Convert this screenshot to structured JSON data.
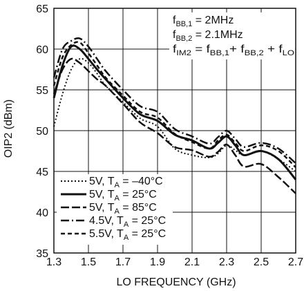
{
  "chart_data": {
    "type": "line",
    "xlabel": "LO FREQUENCY (GHz)",
    "ylabel": "OIP2 (dBm)",
    "xlim": [
      1.3,
      2.7
    ],
    "ylim": [
      35,
      65
    ],
    "xticks": [
      "1.3",
      "1.5",
      "1.7",
      "1.9",
      "2.1",
      "2.3",
      "2.5",
      "2.7"
    ],
    "yticks": [
      "35",
      "40",
      "45",
      "50",
      "55",
      "60",
      "65"
    ],
    "grid": true,
    "legend_position": "bottom-left",
    "annotations": {
      "line1": {
        "pre": "f",
        "sub": "BB,1",
        "post": " = 2MHz"
      },
      "line2": {
        "pre": "f",
        "sub": "BB,2",
        "post": " = 2.1MHz"
      },
      "line3": {
        "a": "f",
        "a_sub": "IM2",
        "b": " = f",
        "b_sub": "BB,1",
        "c": "+ f",
        "c_sub": "BB,2",
        "d": " + f",
        "d_sub": "LO"
      }
    },
    "series": [
      {
        "name": "5V, TA = –40°C",
        "label_pre": "5V, T",
        "label_sub": "A",
        "label_post": " = –40°C",
        "dash": "2,3",
        "width": 2,
        "x": [
          1.3,
          1.35,
          1.4,
          1.45,
          1.5,
          1.55,
          1.6,
          1.7,
          1.8,
          1.9,
          2.0,
          2.1,
          2.2,
          2.25,
          2.3,
          2.35,
          2.4,
          2.5,
          2.6,
          2.7
        ],
        "y": [
          50.5,
          54.5,
          57.5,
          58.8,
          58.3,
          57.0,
          55.5,
          53.5,
          51.5,
          50.5,
          47.8,
          47.0,
          46.7,
          47.2,
          48.2,
          47.6,
          47.0,
          47.5,
          46.5,
          45.0
        ]
      },
      {
        "name": "5V, TA = 25°C",
        "label_pre": "5V, T",
        "label_sub": "A",
        "label_post": " = 25°C",
        "dash": "",
        "width": 3,
        "x": [
          1.3,
          1.35,
          1.4,
          1.45,
          1.5,
          1.55,
          1.6,
          1.7,
          1.8,
          1.9,
          2.0,
          2.1,
          2.2,
          2.25,
          2.3,
          2.35,
          2.4,
          2.5,
          2.6,
          2.7
        ],
        "y": [
          54.0,
          58.0,
          60.3,
          60.0,
          58.8,
          57.5,
          56.3,
          54.0,
          52.0,
          51.2,
          49.5,
          48.8,
          47.8,
          48.5,
          49.3,
          48.2,
          47.0,
          47.5,
          46.5,
          44.0
        ]
      },
      {
        "name": "5V, TA = 85°C",
        "label_pre": "5V, T",
        "label_sub": "A",
        "label_post": " = 85°C",
        "dash": "12,4",
        "width": 2.5,
        "x": [
          1.3,
          1.35,
          1.4,
          1.45,
          1.5,
          1.55,
          1.6,
          1.7,
          1.8,
          1.9,
          2.0,
          2.1,
          2.2,
          2.25,
          2.3,
          2.35,
          2.4,
          2.5,
          2.6,
          2.7
        ],
        "y": [
          54.5,
          57.5,
          58.8,
          58.3,
          57.3,
          56.3,
          55.5,
          53.3,
          51.0,
          49.7,
          48.0,
          47.6,
          46.8,
          47.4,
          48.3,
          47.0,
          45.6,
          45.9,
          44.3,
          42.3
        ]
      },
      {
        "name": "4.5V, TA = 25°C",
        "label_pre": "4.5V, T",
        "label_sub": "A",
        "label_post": " = 25°C",
        "dash": "12,4,2,4",
        "width": 2.5,
        "x": [
          1.3,
          1.35,
          1.4,
          1.45,
          1.5,
          1.55,
          1.6,
          1.7,
          1.8,
          1.9,
          2.0,
          2.1,
          2.2,
          2.25,
          2.3,
          2.35,
          2.4,
          2.5,
          2.6,
          2.7
        ],
        "y": [
          56.5,
          60.0,
          61.0,
          61.3,
          60.3,
          58.8,
          57.3,
          55.0,
          53.0,
          52.3,
          50.2,
          49.3,
          48.4,
          49.2,
          50.0,
          49.0,
          48.0,
          48.5,
          47.8,
          46.0
        ]
      },
      {
        "name": "5.5V, TA = 25°C",
        "label_pre": "5.5V, T",
        "label_sub": "A",
        "label_post": " = 25°C",
        "dash": "6,4",
        "width": 2.5,
        "x": [
          1.3,
          1.35,
          1.4,
          1.45,
          1.5,
          1.55,
          1.6,
          1.7,
          1.8,
          1.9,
          2.0,
          2.1,
          2.2,
          2.25,
          2.3,
          2.35,
          2.4,
          2.5,
          2.6,
          2.7
        ],
        "y": [
          55.5,
          59.0,
          60.5,
          60.8,
          59.5,
          58.0,
          56.5,
          54.3,
          52.3,
          51.6,
          49.6,
          48.6,
          47.8,
          48.8,
          49.5,
          48.5,
          47.5,
          48.2,
          47.5,
          45.5
        ]
      }
    ]
  }
}
